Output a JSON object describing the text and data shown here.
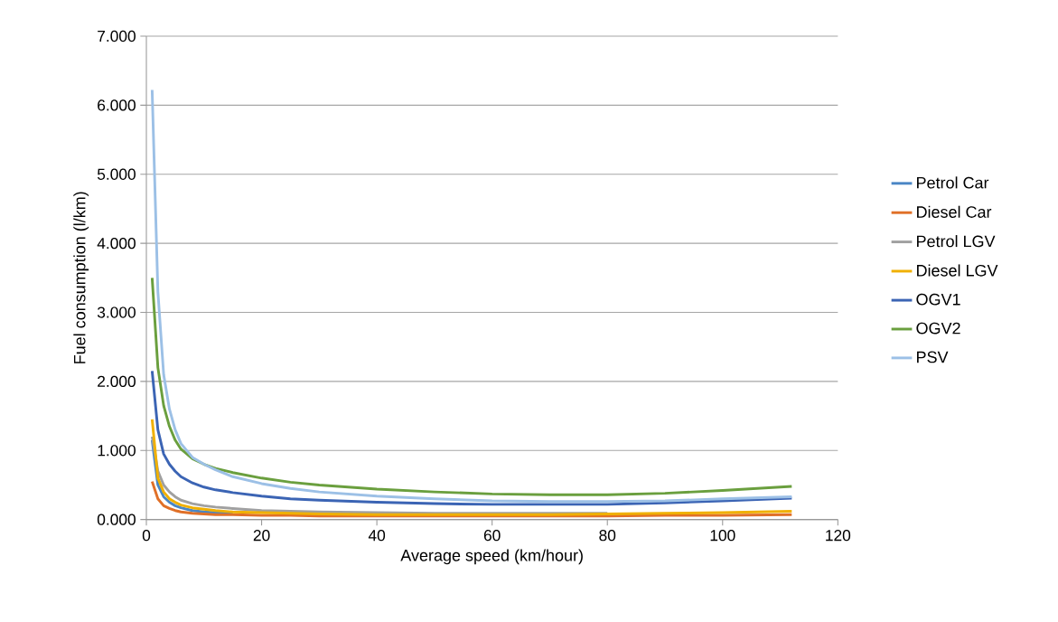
{
  "chart_data": {
    "type": "line",
    "xlabel": "Average speed (km/hour)",
    "ylabel": "Fuel consumption (l/km)",
    "x": [
      1,
      2,
      3,
      4,
      5,
      6,
      8,
      10,
      12,
      15,
      20,
      25,
      30,
      40,
      50,
      60,
      70,
      80,
      90,
      100,
      112
    ],
    "series": [
      {
        "name": "Petrol Car",
        "color": "#4a86c5",
        "values": [
          1.15,
          0.5,
          0.33,
          0.25,
          0.2,
          0.17,
          0.13,
          0.11,
          0.1,
          0.09,
          null,
          null,
          null,
          null,
          null,
          null,
          null,
          null,
          null,
          null,
          null
        ]
      },
      {
        "name": "Diesel Car",
        "color": "#e07028",
        "values": [
          0.55,
          0.3,
          0.2,
          0.16,
          0.13,
          0.11,
          0.09,
          0.08,
          0.07,
          0.07,
          0.06,
          0.06,
          0.05,
          0.05,
          0.05,
          0.05,
          0.05,
          0.05,
          0.06,
          0.06,
          0.07
        ]
      },
      {
        "name": "Petrol LGV",
        "color": "#a0a0a0",
        "values": [
          1.2,
          0.7,
          0.5,
          0.4,
          0.33,
          0.28,
          0.23,
          0.2,
          0.18,
          0.16,
          0.13,
          0.12,
          0.11,
          0.1,
          0.09,
          0.09,
          0.09,
          0.09,
          null,
          null,
          null
        ]
      },
      {
        "name": "Diesel LGV",
        "color": "#f0b000",
        "values": [
          1.45,
          0.6,
          0.4,
          0.3,
          0.25,
          0.21,
          0.17,
          0.15,
          0.13,
          0.11,
          0.1,
          0.09,
          0.08,
          0.07,
          0.07,
          0.07,
          0.07,
          0.08,
          0.09,
          0.1,
          0.12
        ]
      },
      {
        "name": "OGV1",
        "color": "#3b64b4",
        "values": [
          2.15,
          1.3,
          0.95,
          0.8,
          0.7,
          0.62,
          0.53,
          0.47,
          0.43,
          0.39,
          0.34,
          0.3,
          0.28,
          0.25,
          0.23,
          0.22,
          0.22,
          0.22,
          0.24,
          0.27,
          0.31
        ]
      },
      {
        "name": "OGV2",
        "color": "#6a9f3e",
        "values": [
          3.5,
          2.2,
          1.65,
          1.35,
          1.15,
          1.02,
          0.88,
          0.8,
          0.74,
          0.68,
          0.6,
          0.54,
          0.5,
          0.44,
          0.4,
          0.37,
          0.36,
          0.36,
          0.38,
          0.42,
          0.48
        ]
      },
      {
        "name": "PSV",
        "color": "#9cc0e6",
        "values": [
          6.22,
          3.3,
          2.1,
          1.6,
          1.3,
          1.1,
          0.9,
          0.8,
          0.72,
          0.62,
          0.52,
          0.45,
          0.4,
          0.34,
          0.3,
          0.27,
          0.26,
          0.26,
          0.27,
          0.3,
          0.33
        ]
      }
    ],
    "xlim": [
      0,
      120
    ],
    "xticks": [
      0,
      20,
      40,
      60,
      80,
      100,
      120
    ],
    "ylim": [
      0,
      7
    ],
    "yticks": [
      {
        "value": 0,
        "label": "0.000"
      },
      {
        "value": 1,
        "label": "1.000"
      },
      {
        "value": 2,
        "label": "2.000"
      },
      {
        "value": 3,
        "label": "3.000"
      },
      {
        "value": 4,
        "label": "4.000"
      },
      {
        "value": 5,
        "label": "5.000"
      },
      {
        "value": 6,
        "label": "6.000"
      },
      {
        "value": 7,
        "label": "7.000"
      }
    ],
    "grid": "y",
    "legend": "right",
    "marker": "none",
    "line_style": "solid"
  }
}
